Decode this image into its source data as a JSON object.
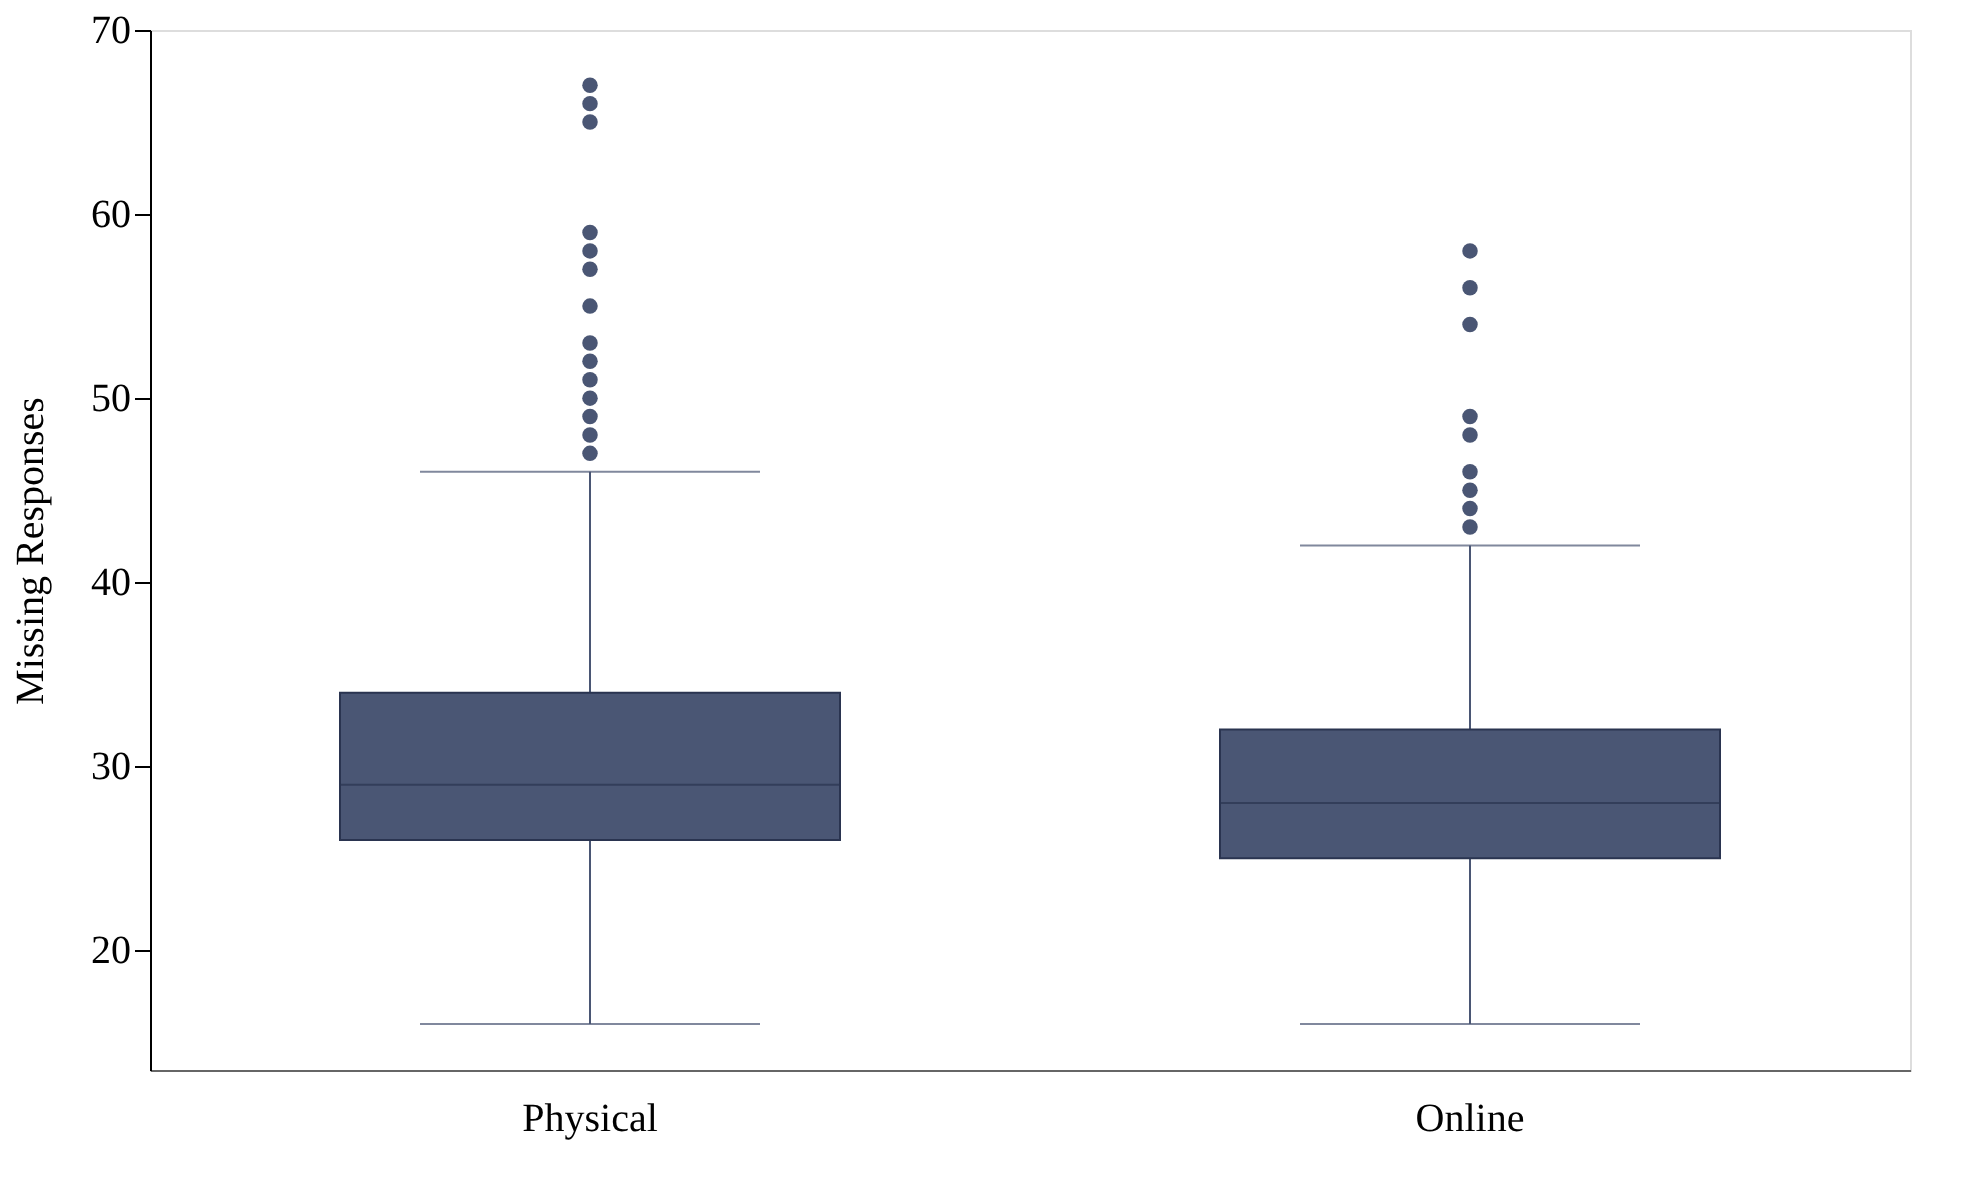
{
  "chart_data": {
    "type": "box",
    "ylabel": "Missing Responses",
    "categories": [
      "Physical",
      "Online"
    ],
    "boxes": [
      {
        "low": 16,
        "q1": 26,
        "median": 29,
        "q3": 34,
        "high": 46,
        "outliers": [
          47,
          48,
          49,
          50,
          51,
          52,
          53,
          55,
          57,
          58,
          59,
          65,
          66,
          67
        ]
      },
      {
        "low": 16,
        "q1": 25,
        "median": 28,
        "q3": 32,
        "high": 42,
        "outliers": [
          43,
          44,
          45,
          46,
          48,
          49,
          54,
          56,
          58
        ]
      }
    ],
    "color": "#4a5674",
    "ylim": [
      13.5,
      70
    ],
    "yticks": [
      20,
      30,
      40,
      50,
      60,
      70
    ],
    "grid": false
  }
}
